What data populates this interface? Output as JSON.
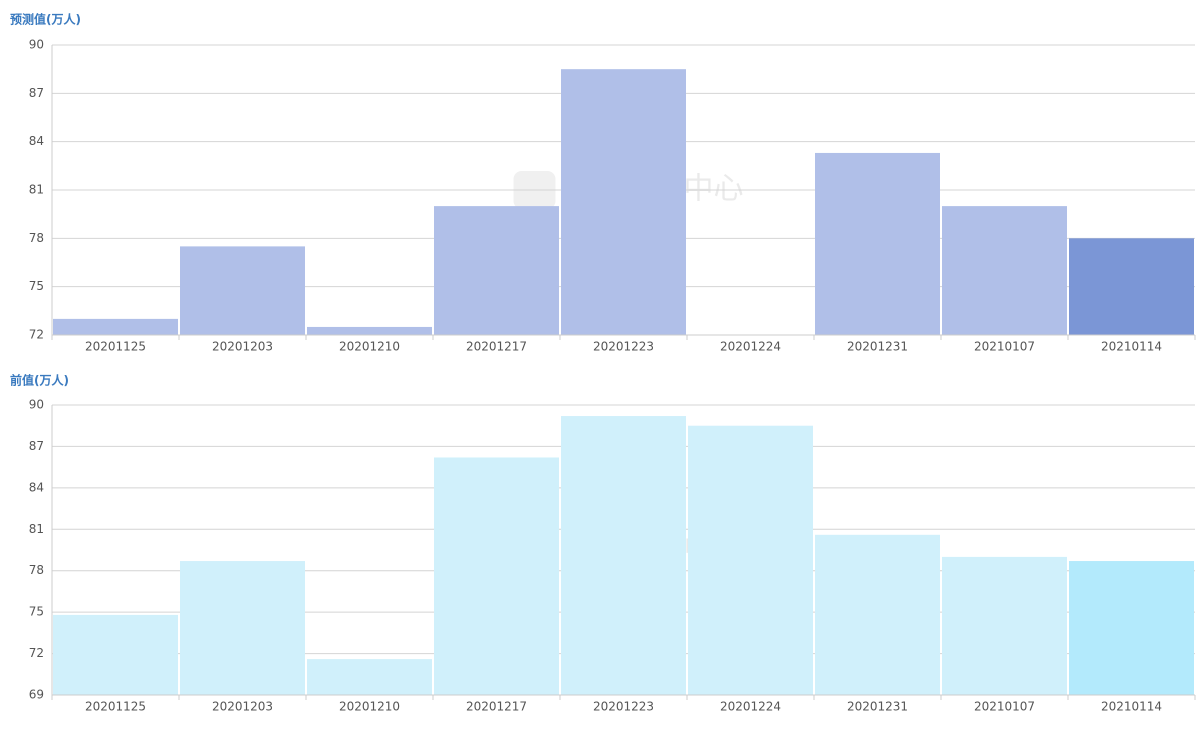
{
  "chart_data": [
    {
      "type": "bar",
      "title": "预测值(万人)",
      "watermark": "金十数据中心",
      "categories": [
        "20201125",
        "20201203",
        "20201210",
        "20201217",
        "20201223",
        "20201224",
        "20201231",
        "20210107",
        "20210114"
      ],
      "values": [
        73,
        77.5,
        72.5,
        80,
        88.5,
        null,
        83.3,
        80,
        78
      ],
      "colors": [
        "#b0bfe8",
        "#b0bfe8",
        "#b0bfe8",
        "#b0bfe8",
        "#b0bfe8",
        "#b0bfe8",
        "#b0bfe8",
        "#b0bfe8",
        "#7b96d6"
      ],
      "ylim": [
        72,
        90
      ],
      "yticks": [
        72,
        75,
        78,
        81,
        84,
        87,
        90
      ],
      "grid": true
    },
    {
      "type": "bar",
      "title": "前值(万人)",
      "watermark": "金十数据中心",
      "categories": [
        "20201125",
        "20201203",
        "20201210",
        "20201217",
        "20201223",
        "20201224",
        "20201231",
        "20210107",
        "20210114"
      ],
      "values": [
        74.8,
        78.7,
        71.6,
        86.2,
        89.2,
        88.5,
        80.6,
        79,
        78.7
      ],
      "colors": [
        "#d0f0fb",
        "#d0f0fb",
        "#d0f0fb",
        "#d0f0fb",
        "#d0f0fb",
        "#d0f0fb",
        "#d0f0fb",
        "#d0f0fb",
        "#b3eafc"
      ],
      "ylim": [
        69,
        90
      ],
      "yticks": [
        69,
        72,
        75,
        78,
        81,
        84,
        87,
        90
      ],
      "grid": true
    }
  ]
}
